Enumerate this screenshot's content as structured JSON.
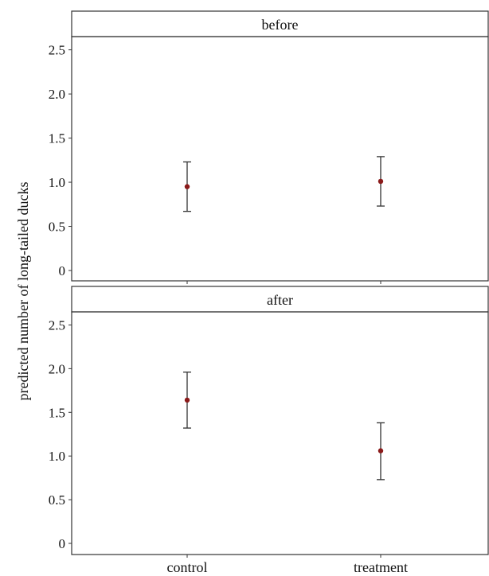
{
  "chart_data": {
    "type": "scatter",
    "style": "point estimates with error bars, faceted",
    "ylabel": "predicted number of long-tailed ducks",
    "xlabel": "",
    "categories": [
      "control",
      "treatment"
    ],
    "y_ticks": [
      "0",
      "0.5",
      "1.0",
      "1.5",
      "2.0",
      "2.5"
    ],
    "ylim": [
      0,
      2.65
    ],
    "grid": false,
    "point_color": "#8b1a1a",
    "panels": [
      {
        "label": "before",
        "points": [
          {
            "category": "control",
            "value": 0.95,
            "lower": 0.67,
            "upper": 1.23
          },
          {
            "category": "treatment",
            "value": 1.01,
            "lower": 0.73,
            "upper": 1.29
          }
        ]
      },
      {
        "label": "after",
        "points": [
          {
            "category": "control",
            "value": 1.64,
            "lower": 1.32,
            "upper": 1.96
          },
          {
            "category": "treatment",
            "value": 1.06,
            "lower": 0.73,
            "upper": 1.38
          }
        ]
      }
    ]
  }
}
